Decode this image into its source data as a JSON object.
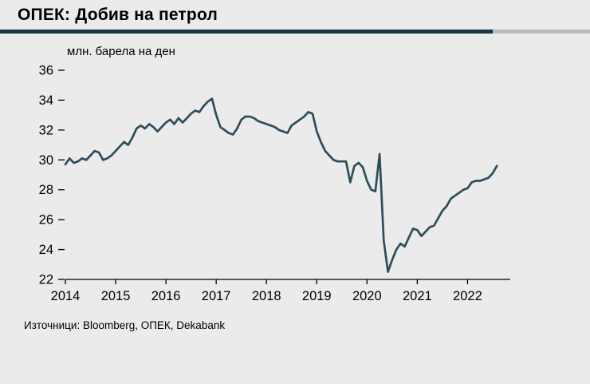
{
  "header": {
    "title": "ОПЕК: Добив на петрол"
  },
  "chart_data": {
    "type": "line",
    "title": "ОПЕК: Добив на петрол",
    "unit_label": "млн. барела на ден",
    "xlabel": "",
    "ylabel": "млн. барела на ден",
    "xlim": [
      2014.0,
      2022.85
    ],
    "ylim": [
      22,
      36
    ],
    "xticks": [
      2014,
      2015,
      2016,
      2017,
      2018,
      2019,
      2020,
      2021,
      2022
    ],
    "yticks": [
      22,
      24,
      26,
      28,
      30,
      32,
      34,
      36
    ],
    "grid": false,
    "legend_position": "none",
    "x_start": 2014.0,
    "x_step_months": 1,
    "series": [
      {
        "name": "ОПЕК добив на петрол",
        "color": "#2e4d5a",
        "values": [
          29.7,
          30.1,
          29.8,
          29.9,
          30.1,
          30.0,
          30.3,
          30.6,
          30.5,
          30.0,
          30.1,
          30.3,
          30.6,
          30.9,
          31.2,
          31.0,
          31.5,
          32.1,
          32.3,
          32.1,
          32.4,
          32.2,
          31.9,
          32.2,
          32.5,
          32.7,
          32.4,
          32.8,
          32.5,
          32.8,
          33.1,
          33.3,
          33.2,
          33.6,
          33.9,
          34.1,
          33.0,
          32.2,
          32.0,
          31.8,
          31.7,
          32.1,
          32.7,
          32.9,
          32.9,
          32.8,
          32.6,
          32.5,
          32.4,
          32.3,
          32.2,
          32.0,
          31.9,
          31.8,
          32.3,
          32.5,
          32.7,
          32.9,
          33.2,
          33.1,
          31.9,
          31.2,
          30.6,
          30.3,
          30.0,
          29.9,
          29.9,
          29.9,
          28.5,
          29.6,
          29.8,
          29.5,
          28.6,
          28.0,
          27.9,
          30.4,
          24.6,
          22.5,
          23.3,
          24.0,
          24.4,
          24.2,
          24.8,
          25.4,
          25.3,
          24.9,
          25.2,
          25.5,
          25.6,
          26.1,
          26.6,
          26.9,
          27.4,
          27.6,
          27.8,
          28.0,
          28.1,
          28.5,
          28.6,
          28.6,
          28.7,
          28.8,
          29.1,
          29.6
        ]
      }
    ]
  },
  "footer": {
    "sources": "Източници: Bloomberg, ОПЕК, Dekabank"
  },
  "colors": {
    "background": "#ebebeb",
    "line": "#2e4d5a",
    "rule_dark": "#1a3642",
    "rule_light": "#b7bdbf",
    "axis": "#000000",
    "text": "#000000"
  }
}
